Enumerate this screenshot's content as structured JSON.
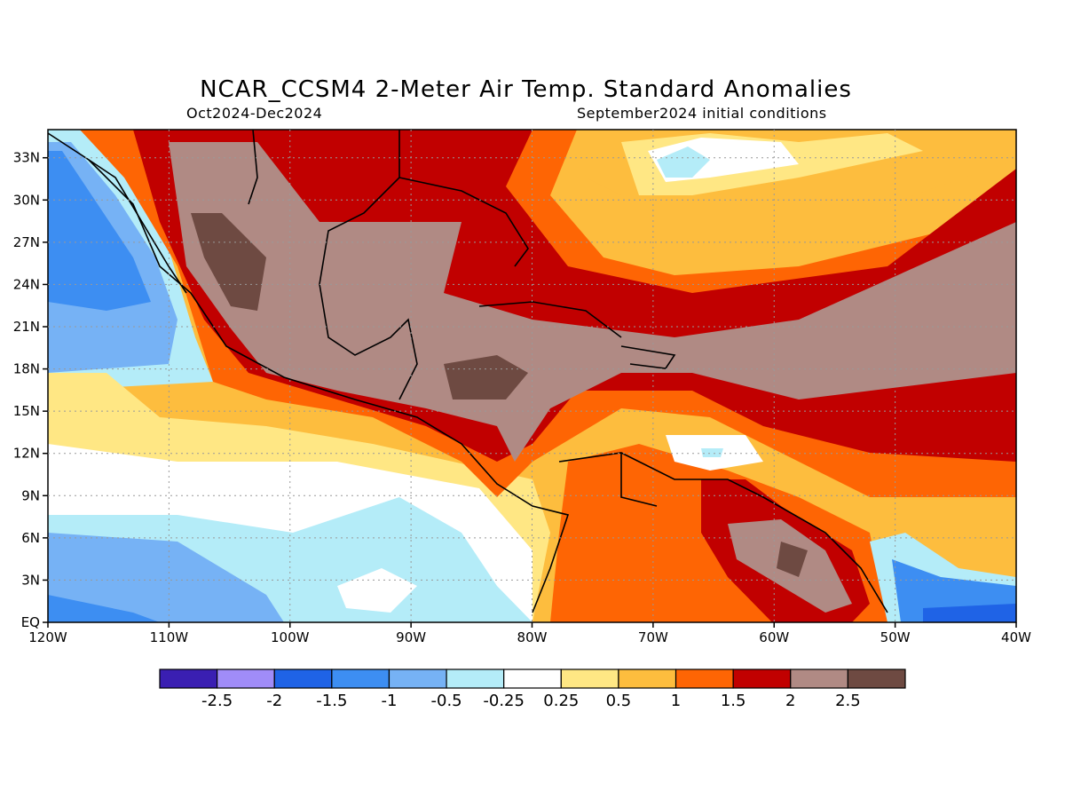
{
  "title": "NCAR_CCSM4 2-Meter Air Temp. Standard Anomalies",
  "subtitle_left": "Oct2024-Dec2024",
  "subtitle_right": "September2024 initial conditions",
  "map": {
    "lon_range": [
      -120,
      -40
    ],
    "lat_range": [
      0,
      35
    ],
    "x_ticks": [
      "120W",
      "110W",
      "100W",
      "90W",
      "80W",
      "70W",
      "60W",
      "50W",
      "40W"
    ],
    "y_ticks": [
      "EQ",
      "3N",
      "6N",
      "9N",
      "12N",
      "15N",
      "18N",
      "21N",
      "24N",
      "27N",
      "30N",
      "33N"
    ],
    "grid": true
  },
  "colorbar": {
    "colors": [
      "#3a1fb2",
      "#a08cf8",
      "#1f63e6",
      "#3d8ef2",
      "#76b2f5",
      "#b4ecf8",
      "#ffffff",
      "#ffe784",
      "#fdbd3e",
      "#fe6504",
      "#c10000",
      "#b08a84",
      "#6e4a42"
    ],
    "labels": [
      "-2.5",
      "-2",
      "-1.5",
      "-1",
      "-0.5",
      "-0.25",
      "0.25",
      "0.5",
      "1",
      "1.5",
      "2",
      "2.5"
    ]
  }
}
